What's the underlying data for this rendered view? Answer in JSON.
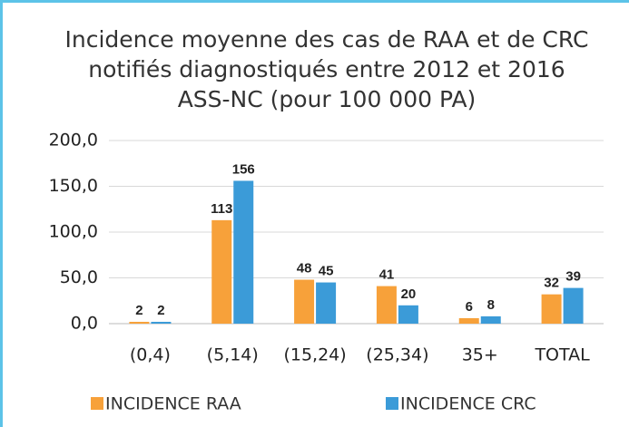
{
  "chart_data": {
    "type": "bar",
    "title": [
      "Incidence moyenne des cas de RAA et de CRC",
      "notifiés diagnostiqués entre 2012 et 2016",
      "ASS-NC (pour 100 000 PA)"
    ],
    "categories": [
      "(0,4)",
      "(5,14)",
      "(15,24)",
      "(25,34)",
      "35+",
      "TOTAL"
    ],
    "series": [
      {
        "name": "INCIDENCE RAA",
        "color": "#f7a13a",
        "values": [
          2,
          113,
          48,
          41,
          6,
          32
        ]
      },
      {
        "name": "INCIDENCE CRC",
        "color": "#3b9bd8",
        "values": [
          2,
          156,
          45,
          20,
          8,
          39
        ]
      }
    ],
    "ylim": [
      0,
      200
    ],
    "yticks": [
      {
        "value": 0,
        "label": "0,0"
      },
      {
        "value": 50,
        "label": "50,0"
      },
      {
        "value": 100,
        "label": "100,0"
      },
      {
        "value": 150,
        "label": "150,0"
      },
      {
        "value": 200,
        "label": "200,0"
      }
    ],
    "grid": true
  }
}
